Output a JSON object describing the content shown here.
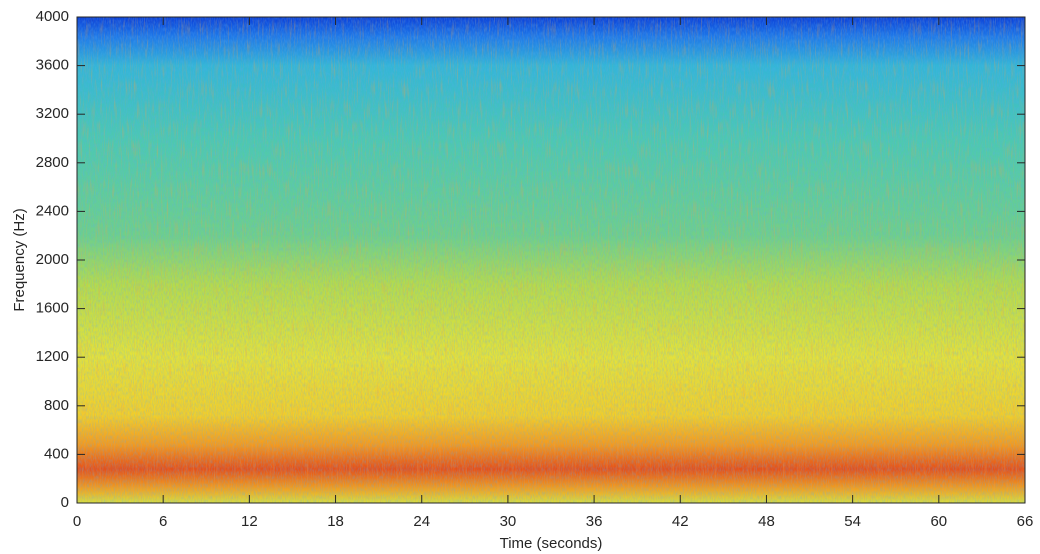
{
  "chart_data": {
    "type": "spectrogram",
    "xlabel": "Time (seconds)",
    "ylabel": "Frequency (Hz)",
    "xlim": [
      0,
      66
    ],
    "xticks": [
      0,
      6,
      12,
      18,
      24,
      30,
      36,
      42,
      48,
      54,
      60,
      66
    ],
    "ylim": [
      0,
      4000
    ],
    "yticks": [
      0,
      400,
      800,
      1200,
      1600,
      2000,
      2400,
      2800,
      3200,
      3600,
      4000
    ]
  }
}
